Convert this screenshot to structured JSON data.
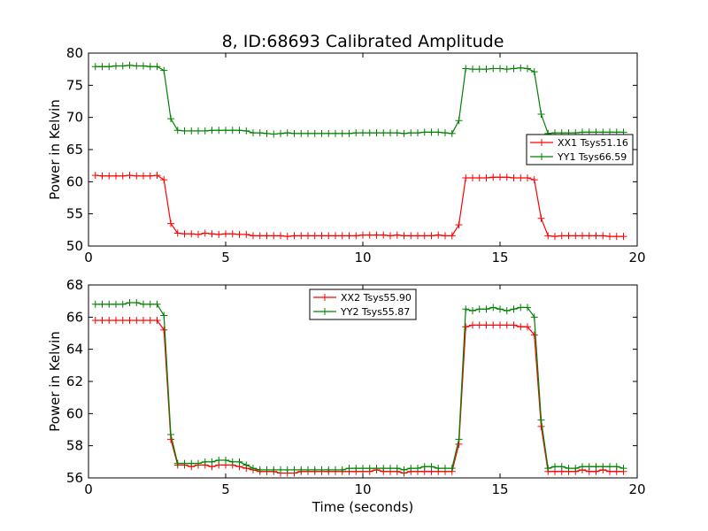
{
  "figure": {
    "title": "8, ID:68693 Calibrated Amplitude"
  },
  "chart_data": [
    {
      "type": "line",
      "title": "8, ID:68693 Calibrated Amplitude",
      "xlabel": "",
      "ylabel": "Power in Kelvin",
      "xlim": [
        0,
        20
      ],
      "ylim": [
        50,
        80
      ],
      "xticks": [
        "0",
        "5",
        "10",
        "15",
        "20"
      ],
      "yticks": [
        "50",
        "55",
        "60",
        "65",
        "70",
        "75",
        "80"
      ],
      "grid": false,
      "legend_position": "center-right",
      "marker": "+",
      "x": [
        0.25,
        0.5,
        0.75,
        1.0,
        1.25,
        1.5,
        1.75,
        2.0,
        2.25,
        2.5,
        2.75,
        3.0,
        3.25,
        3.5,
        3.75,
        4.0,
        4.25,
        4.5,
        4.75,
        5.0,
        5.25,
        5.5,
        5.75,
        6.0,
        6.25,
        6.5,
        6.75,
        7.0,
        7.25,
        7.5,
        7.75,
        8.0,
        8.25,
        8.5,
        8.75,
        9.0,
        9.25,
        9.5,
        9.75,
        10.0,
        10.25,
        10.5,
        10.75,
        11.0,
        11.25,
        11.5,
        11.75,
        12.0,
        12.25,
        12.5,
        12.75,
        13.0,
        13.25,
        13.5,
        13.75,
        14.0,
        14.25,
        14.5,
        14.75,
        15.0,
        15.25,
        15.5,
        15.75,
        16.0,
        16.25,
        16.5,
        16.75,
        17.0,
        17.25,
        17.5,
        17.75,
        18.0,
        18.25,
        18.5,
        18.75,
        19.0,
        19.25,
        19.5
      ],
      "series": [
        {
          "name": "XX1 Tsys51.16",
          "color": "#ff0000",
          "values": [
            61.0,
            60.9,
            60.9,
            60.9,
            60.9,
            61.0,
            60.9,
            60.9,
            60.9,
            61.0,
            60.3,
            53.5,
            52.0,
            51.9,
            51.9,
            51.8,
            52.0,
            51.9,
            51.8,
            51.9,
            51.9,
            51.8,
            51.8,
            51.6,
            51.6,
            51.6,
            51.6,
            51.6,
            51.5,
            51.6,
            51.6,
            51.6,
            51.6,
            51.6,
            51.6,
            51.6,
            51.6,
            51.6,
            51.6,
            51.7,
            51.7,
            51.7,
            51.7,
            51.6,
            51.7,
            51.6,
            51.6,
            51.6,
            51.6,
            51.6,
            51.7,
            51.6,
            51.6,
            53.3,
            60.6,
            60.6,
            60.6,
            60.6,
            60.7,
            60.7,
            60.7,
            60.6,
            60.6,
            60.6,
            60.3,
            54.3,
            51.6,
            51.5,
            51.6,
            51.6,
            51.6,
            51.6,
            51.6,
            51.6,
            51.6,
            51.5,
            51.5,
            51.5
          ]
        },
        {
          "name": "YY1 Tsys66.59",
          "color": "#008000",
          "values": [
            77.9,
            77.9,
            77.9,
            78.0,
            78.0,
            78.1,
            78.0,
            78.0,
            77.9,
            77.9,
            77.3,
            69.8,
            68.0,
            67.9,
            67.9,
            67.9,
            67.9,
            68.0,
            68.0,
            68.0,
            68.0,
            68.0,
            67.9,
            67.6,
            67.6,
            67.5,
            67.4,
            67.5,
            67.6,
            67.5,
            67.5,
            67.5,
            67.5,
            67.5,
            67.5,
            67.5,
            67.5,
            67.5,
            67.6,
            67.6,
            67.6,
            67.6,
            67.6,
            67.6,
            67.6,
            67.5,
            67.6,
            67.6,
            67.7,
            67.7,
            67.7,
            67.6,
            67.5,
            69.5,
            77.6,
            77.5,
            77.5,
            77.5,
            77.6,
            77.6,
            77.5,
            77.6,
            77.7,
            77.6,
            77.1,
            70.5,
            67.5,
            67.6,
            67.6,
            67.6,
            67.6,
            67.7,
            67.7,
            67.7,
            67.7,
            67.7,
            67.7,
            67.7
          ]
        }
      ]
    },
    {
      "type": "line",
      "title": "",
      "xlabel": "Time (seconds)",
      "ylabel": "Power in Kelvin",
      "xlim": [
        0,
        20
      ],
      "ylim": [
        56,
        68
      ],
      "xticks": [
        "0",
        "5",
        "10",
        "15",
        "20"
      ],
      "yticks": [
        "56",
        "58",
        "60",
        "62",
        "64",
        "66",
        "68"
      ],
      "grid": false,
      "legend_position": "top-center",
      "marker": "+",
      "x": [
        0.25,
        0.5,
        0.75,
        1.0,
        1.25,
        1.5,
        1.75,
        2.0,
        2.25,
        2.5,
        2.75,
        3.0,
        3.25,
        3.5,
        3.75,
        4.0,
        4.25,
        4.5,
        4.75,
        5.0,
        5.25,
        5.5,
        5.75,
        6.0,
        6.25,
        6.5,
        6.75,
        7.0,
        7.25,
        7.5,
        7.75,
        8.0,
        8.25,
        8.5,
        8.75,
        9.0,
        9.25,
        9.5,
        9.75,
        10.0,
        10.25,
        10.5,
        10.75,
        11.0,
        11.25,
        11.5,
        11.75,
        12.0,
        12.25,
        12.5,
        12.75,
        13.0,
        13.25,
        13.5,
        13.75,
        14.0,
        14.25,
        14.5,
        14.75,
        15.0,
        15.25,
        15.5,
        15.75,
        16.0,
        16.25,
        16.5,
        16.75,
        17.0,
        17.25,
        17.5,
        17.75,
        18.0,
        18.25,
        18.5,
        18.75,
        19.0,
        19.25,
        19.5
      ],
      "series": [
        {
          "name": "XX2 Tsys55.90",
          "color": "#ff0000",
          "values": [
            65.8,
            65.8,
            65.8,
            65.8,
            65.8,
            65.8,
            65.8,
            65.8,
            65.8,
            65.8,
            65.2,
            58.4,
            56.8,
            56.8,
            56.7,
            56.8,
            56.8,
            56.7,
            56.8,
            56.8,
            56.8,
            56.7,
            56.6,
            56.5,
            56.4,
            56.4,
            56.4,
            56.3,
            56.3,
            56.3,
            56.4,
            56.4,
            56.4,
            56.4,
            56.4,
            56.4,
            56.4,
            56.4,
            56.4,
            56.4,
            56.4,
            56.5,
            56.4,
            56.4,
            56.4,
            56.3,
            56.4,
            56.4,
            56.4,
            56.4,
            56.4,
            56.4,
            56.4,
            58.1,
            65.4,
            65.5,
            65.5,
            65.5,
            65.5,
            65.5,
            65.5,
            65.5,
            65.4,
            65.4,
            64.9,
            59.2,
            56.4,
            56.4,
            56.4,
            56.4,
            56.4,
            56.5,
            56.4,
            56.4,
            56.5,
            56.4,
            56.4,
            56.4
          ]
        },
        {
          "name": "YY2 Tsys55.87",
          "color": "#008000",
          "values": [
            66.8,
            66.8,
            66.8,
            66.8,
            66.8,
            66.9,
            66.9,
            66.8,
            66.8,
            66.8,
            66.1,
            58.7,
            56.9,
            56.9,
            56.9,
            56.9,
            57.0,
            57.0,
            57.1,
            57.1,
            57.0,
            57.0,
            56.8,
            56.6,
            56.5,
            56.5,
            56.5,
            56.5,
            56.5,
            56.5,
            56.5,
            56.5,
            56.5,
            56.5,
            56.5,
            56.5,
            56.5,
            56.6,
            56.6,
            56.6,
            56.6,
            56.6,
            56.6,
            56.6,
            56.6,
            56.5,
            56.6,
            56.6,
            56.7,
            56.7,
            56.6,
            56.6,
            56.6,
            58.4,
            66.5,
            66.4,
            66.5,
            66.5,
            66.6,
            66.5,
            66.4,
            66.5,
            66.6,
            66.6,
            66.0,
            59.6,
            56.6,
            56.7,
            56.7,
            56.6,
            56.6,
            56.7,
            56.7,
            56.7,
            56.7,
            56.7,
            56.7,
            56.6
          ]
        }
      ]
    }
  ]
}
